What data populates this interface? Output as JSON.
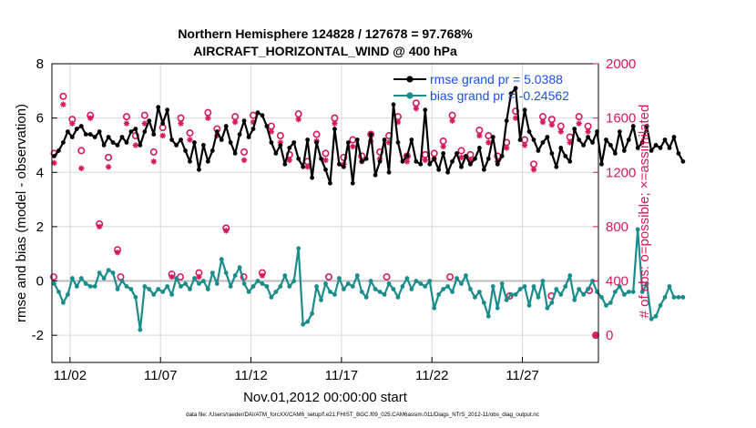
{
  "chart_data": {
    "type": "line",
    "title_line1": "Northern Hemisphere 124828 / 127678 = 97.768%",
    "title_line2": "AIRCRAFT_HORIZONTAL_WIND @ 400 hPa",
    "xlabel": "Nov.01,2012 00:00:00 start",
    "ylabel_left": "rmse and bias (model - observation)",
    "ylabel_right": "# of obs: o=possible; ×=assimilated",
    "footnote": "data file: /Users/raeder/DAI/ATM_forcXX/CAM6_setup/f.e21.FHIST_BGC.f09_025.CAM6assim.011/Diags_NTrS_2012-11/obs_diag_output.nc",
    "x_tick_labels": [
      "11/02",
      "11/07",
      "11/12",
      "11/17",
      "11/22",
      "11/27"
    ],
    "x_tick_days": [
      2,
      7,
      12,
      17,
      22,
      27
    ],
    "xlim_days": [
      1,
      31.2
    ],
    "ylim_left": [
      -3,
      8
    ],
    "yticks_left": [
      -2,
      0,
      2,
      4,
      6,
      8
    ],
    "ylim_right": [
      -200,
      2000
    ],
    "yticks_right": [
      0,
      400,
      800,
      1200,
      1600,
      2000
    ],
    "zero_line": 0,
    "colors": {
      "rmse": "#000000",
      "bias": "#1a8c8c",
      "obs": "#d6185c",
      "legend_text": "#1a50e0",
      "grid": "#d8d8d8",
      "zero": "#bbbbbb"
    },
    "legend": {
      "rmse_label": "rmse grand pr = 5.0388",
      "bias_label": "bias grand pr = -0.24562",
      "placement": "top-right"
    },
    "series": [
      {
        "name": "rmse",
        "axis": "left",
        "start_day": 1.125,
        "step_days": 0.25,
        "values": [
          4.6,
          4.8,
          5.1,
          5.5,
          5.3,
          5.6,
          5.7,
          5.4,
          5.4,
          5.3,
          5.5,
          5.0,
          5.3,
          5.1,
          5.0,
          5.3,
          5.1,
          5.5,
          5.6,
          5.0,
          5.5,
          5.9,
          5.4,
          6.4,
          5.8,
          6.3,
          5.2,
          5.0,
          5.2,
          4.8,
          4.4,
          5.1,
          4.1,
          5.0,
          4.4,
          4.8,
          5.5,
          5.2,
          5.7,
          5.1,
          4.7,
          5.4,
          5.9,
          5.3,
          5.6,
          6.2,
          6.1,
          5.7,
          5.1,
          4.7,
          5.0,
          4.3,
          4.9,
          5.1,
          4.5,
          4.2,
          5.2,
          3.8,
          5.1,
          4.5,
          4.1,
          3.6,
          5.6,
          4.3,
          4.2,
          5.1,
          3.6,
          5.2,
          4.4,
          4.5,
          5.4,
          3.9,
          4.4,
          5.2,
          4.0,
          6.5,
          5.1,
          4.4,
          4.6,
          5.2,
          4.4,
          4.3,
          6.3,
          4.3,
          4.5,
          4.1,
          4.7,
          4.0,
          4.4,
          4.7,
          4.2,
          4.6,
          4.3,
          4.5,
          4.9,
          4.1,
          4.5,
          5.3,
          4.3,
          4.6,
          5.9,
          6.9,
          7.1,
          5.2,
          6.3,
          5.5,
          5.2,
          4.8,
          5.1,
          5.3,
          4.7,
          4.2,
          4.9,
          4.6,
          4.4,
          5.6,
          5.2,
          5.0,
          5.3,
          5.1,
          5.5,
          4.3,
          5.2,
          5.0,
          4.7,
          5.5,
          4.8,
          5.2,
          5.7,
          4.9,
          5.1,
          5.7,
          4.8,
          5.0,
          4.9,
          5.2,
          4.9,
          5.3,
          4.7,
          4.4
        ]
      },
      {
        "name": "bias",
        "axis": "left",
        "start_day": 1.125,
        "step_days": 0.25,
        "values": [
          -0.1,
          -0.4,
          -0.8,
          -0.5,
          0.1,
          -0.2,
          0.1,
          -0.1,
          -0.2,
          -0.2,
          0.3,
          0.1,
          0.4,
          0.3,
          -0.3,
          0.0,
          -0.2,
          -0.3,
          -0.6,
          -1.8,
          -0.2,
          -0.3,
          -0.5,
          -0.3,
          -0.4,
          -0.2,
          -0.5,
          0.1,
          -0.2,
          -0.1,
          -0.3,
          0.1,
          -0.1,
          0.0,
          -0.3,
          0.3,
          -0.1,
          0.8,
          0.3,
          -0.2,
          0.2,
          0.5,
          -0.1,
          -0.4,
          -0.2,
          0.0,
          -0.1,
          -0.2,
          -0.6,
          -0.4,
          -0.2,
          0.2,
          -0.2,
          0.0,
          1.2,
          -1.6,
          -1.5,
          -1.2,
          -0.2,
          -0.7,
          -0.1,
          -0.4,
          -0.5,
          0.1,
          -0.3,
          -0.1,
          -0.2,
          0.2,
          -0.4,
          -0.6,
          0.0,
          -0.3,
          -0.4,
          -0.5,
          -0.1,
          -0.3,
          -0.6,
          -0.2,
          0.1,
          -0.3,
          0.0,
          -0.1,
          -0.2,
          0.0,
          -1.0,
          -0.5,
          -0.3,
          -0.2,
          -0.4,
          0.1,
          -0.1,
          0.2,
          -0.3,
          -0.6,
          -0.4,
          -0.8,
          -1.3,
          -0.2,
          -1.0,
          -0.1,
          -0.7,
          -0.5,
          -0.5,
          -0.3,
          -0.2,
          -0.9,
          -0.2,
          -0.6,
          0.0,
          -1.0,
          -0.8,
          -0.3,
          -0.5,
          -0.2,
          0.2,
          -0.7,
          -0.3,
          -0.5,
          -0.3,
          0.0,
          -0.4,
          -0.6,
          -0.9,
          -0.8,
          -0.4,
          -0.2,
          -0.5,
          -0.4,
          -0.4,
          1.9,
          -0.4,
          -0.1,
          -1.4,
          -1.3,
          -0.9,
          -0.6,
          -0.2,
          -0.6,
          -0.6,
          -0.6
        ]
      },
      {
        "name": "obs_possible",
        "axis": "right",
        "marker": "o",
        "start_day": 1.125,
        "step_days": 0.5,
        "values": [
          1340,
          1760,
          1590,
          1360,
          1620,
          820,
          1310,
          630,
          1610,
          1470,
          1620,
          1350,
          1530,
          450,
          1600,
          1490,
          460,
          1640,
          1520,
          790,
          1610,
          1350,
          1620,
          460,
          1540,
          1470,
          1330,
          1630,
          1280,
          1480,
          1340,
          1600,
          1310,
          1440,
          1320,
          1480,
          1350,
          1470,
          1610,
          1320,
          1710,
          1330,
          1340,
          1430,
          1620,
          1360,
          1330,
          1510,
          1470,
          1320,
          1420,
          1650,
          1440,
          1260,
          1610,
          1590,
          1540,
          1460,
          1610,
          1540
        ]
      },
      {
        "name": "obs_assimilated",
        "axis": "right",
        "marker": "x",
        "start_day": 1.125,
        "step_days": 0.5,
        "values": [
          1270,
          1700,
          1560,
          1230,
          1600,
          800,
          1240,
          610,
          1560,
          1400,
          1560,
          1280,
          1470,
          430,
          1560,
          1440,
          430,
          1600,
          1470,
          770,
          1570,
          1290,
          1570,
          440,
          1500,
          1420,
          1290,
          1590,
          1240,
          1430,
          1290,
          1560,
          1260,
          1390,
          1280,
          1430,
          1300,
          1420,
          1570,
          1280,
          1670,
          1290,
          1300,
          1390,
          1580,
          1310,
          1290,
          1470,
          1420,
          1280,
          1380,
          1600,
          1400,
          1220,
          1570,
          1550,
          1500,
          1420,
          1560,
          1500
        ]
      }
    ],
    "extra_markers": [
      {
        "series": "obs_possible",
        "day": 1.1,
        "right_value": 430
      },
      {
        "series": "obs_possible",
        "day": 4.8,
        "right_value": 430
      },
      {
        "series": "obs_possible",
        "day": 8.1,
        "right_value": 430
      },
      {
        "series": "obs_possible",
        "day": 11.6,
        "right_value": 430
      },
      {
        "series": "obs_possible",
        "day": 16.3,
        "right_value": 430
      },
      {
        "series": "obs_possible",
        "day": 19.5,
        "right_value": 430
      },
      {
        "series": "obs_possible",
        "day": 23.0,
        "right_value": 430
      },
      {
        "series": "obs_possible",
        "day": 26.3,
        "right_value": 290
      },
      {
        "series": "obs_possible",
        "day": 28.6,
        "right_value": 290
      },
      {
        "series": "obs_possible",
        "day": 30.7,
        "right_value": 330
      },
      {
        "series": "obs_possible",
        "day": 31.05,
        "right_value": 0
      },
      {
        "series": "obs_assimilated",
        "day": 31.05,
        "right_value": 0
      }
    ]
  }
}
